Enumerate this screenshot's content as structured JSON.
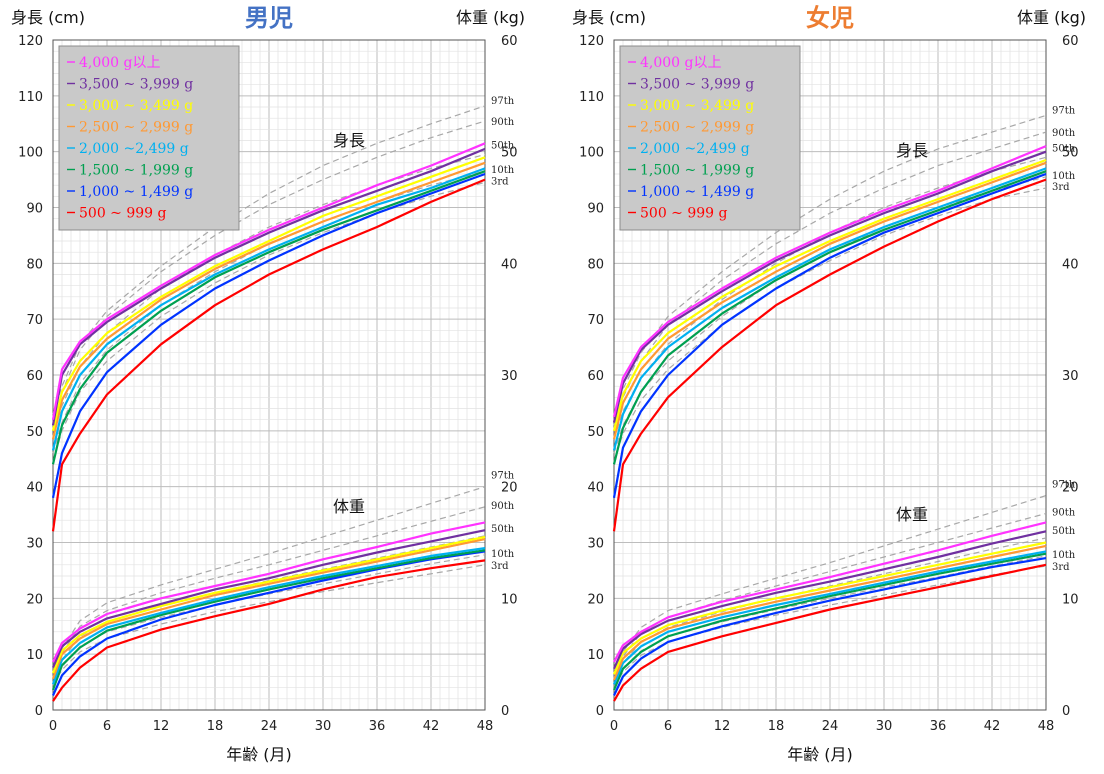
{
  "x_axis_title": "年齢 (月)",
  "left_axis_title": "身長 (cm)",
  "right_axis_title": "体重 (kg)",
  "height_label": "身長",
  "weight_label": "体重",
  "x_ticks": [
    0,
    6,
    12,
    18,
    24,
    30,
    36,
    42,
    48
  ],
  "left_ticks": [
    0,
    10,
    20,
    30,
    40,
    50,
    60,
    70,
    80,
    90,
    100,
    110,
    120
  ],
  "right_ticks": [
    0,
    10,
    20,
    30,
    40,
    50,
    60
  ],
  "legend": [
    {
      "label": "4,000 g以上",
      "color": "#ff33ff"
    },
    {
      "label": "3,500 ~ 3,999 g",
      "color": "#7030a0"
    },
    {
      "label": "3,000 ~ 3,499 g",
      "color": "#ffff00"
    },
    {
      "label": "2,500 ~ 2,999 g",
      "color": "#ff9933"
    },
    {
      "label": "2,000 ~2,499 g",
      "color": "#00b0f0"
    },
    {
      "label": "1,500 ~ 1,999 g",
      "color": "#00a050"
    },
    {
      "label": "1,000 ~ 1,499 g",
      "color": "#0033ff"
    },
    {
      "label": "500 ~ 999 g",
      "color": "#ff0000"
    }
  ],
  "chart_data": [
    {
      "type": "line",
      "title": "男児",
      "title_color": "#4472c4",
      "xlabel": "年齢 (月)",
      "ylabel_left": "身長 (cm)",
      "ylabel_right": "体重 (kg)",
      "xlim": [
        0,
        48
      ],
      "ylim_left": [
        0,
        120
      ],
      "ylim_right": [
        0,
        60
      ],
      "grid": true,
      "legend_position": "top-left",
      "x": [
        0,
        1,
        3,
        6,
        12,
        18,
        24,
        30,
        36,
        42,
        48
      ],
      "height_percentiles": [
        {
          "name": "97th",
          "values": [
            53,
            58,
            65.5,
            71.5,
            79.5,
            86.5,
            92.5,
            97.5,
            101.5,
            105,
            108.2
          ]
        },
        {
          "name": "90th",
          "values": [
            51.5,
            57,
            64.5,
            70.5,
            78.5,
            85,
            90.5,
            95,
            99,
            102.5,
            105.5
          ]
        },
        {
          "name": "50th",
          "values": [
            49,
            54.5,
            61.5,
            67.5,
            75.5,
            81.5,
            86.5,
            90.5,
            94,
            97,
            99.5
          ]
        },
        {
          "name": "10th",
          "values": [
            46,
            51.5,
            58.5,
            64.5,
            72.5,
            78.5,
            83.5,
            87.5,
            91,
            94,
            96.5
          ]
        },
        {
          "name": "3rd",
          "values": [
            44.5,
            50,
            57,
            62.5,
            70.5,
            76.5,
            81.5,
            85.5,
            89,
            92,
            94.5
          ]
        }
      ],
      "weight_percentiles": [
        {
          "name": "97th",
          "values": [
            3.8,
            5.5,
            8,
            9.6,
            11.2,
            12.6,
            14,
            15.5,
            17,
            18.5,
            20
          ]
        },
        {
          "name": "90th",
          "values": [
            3.4,
            5.1,
            7.5,
            8.9,
            10.5,
            11.8,
            13,
            14.3,
            15.6,
            16.9,
            18.2
          ]
        },
        {
          "name": "50th",
          "values": [
            3,
            4.5,
            6.6,
            7.9,
            9.3,
            10.5,
            11.6,
            12.6,
            13.6,
            14.6,
            15.6
          ]
        },
        {
          "name": "10th",
          "values": [
            2.5,
            3.9,
            5.7,
            7,
            8.3,
            9.4,
            10.4,
            11.3,
            12.2,
            13.1,
            13.9
          ]
        },
        {
          "name": "3rd",
          "values": [
            2.2,
            3.6,
            5.2,
            6.4,
            7.7,
            8.8,
            9.7,
            10.6,
            11.4,
            12.2,
            13
          ]
        }
      ],
      "height_series": [
        {
          "name": "4,000 g以上",
          "values": [
            52,
            61,
            66,
            70,
            76,
            81.5,
            86,
            90,
            94,
            97.5,
            101.5
          ]
        },
        {
          "name": "3,500 ~ 3,999 g",
          "values": [
            51,
            60,
            65.5,
            69.5,
            75.5,
            81,
            85.5,
            89.5,
            93,
            96.5,
            100.5
          ]
        },
        {
          "name": "3,000 ~ 3,499 g",
          "values": [
            50,
            57,
            62.5,
            67.5,
            74,
            79.5,
            84,
            88.5,
            92,
            95.5,
            99
          ]
        },
        {
          "name": "2,500 ~ 2,999 g",
          "values": [
            48.5,
            55.5,
            61.5,
            66.5,
            73.5,
            79,
            83.5,
            87.5,
            91,
            94.5,
            98
          ]
        },
        {
          "name": "2,000 ~2,499 g",
          "values": [
            46.5,
            53.5,
            60,
            65.5,
            72.5,
            78,
            82.5,
            86.5,
            90.5,
            93.5,
            97
          ]
        },
        {
          "name": "1,500 ~ 1,999 g",
          "values": [
            44,
            51,
            57.5,
            64,
            71.5,
            77.5,
            82,
            86,
            89.5,
            93,
            96.5
          ]
        },
        {
          "name": "1,000 ~ 1,499 g",
          "values": [
            38,
            46,
            53.5,
            60.5,
            69,
            75.5,
            80.5,
            85,
            89,
            92.5,
            96
          ]
        },
        {
          "name": "500 ~ 999 g",
          "values": [
            32,
            44,
            49.5,
            56.5,
            65.5,
            72.5,
            78,
            82.5,
            86.5,
            91,
            95
          ]
        }
      ],
      "weight_series": [
        {
          "name": "4,000 g以上",
          "values": [
            4.3,
            6,
            7.3,
            8.6,
            10,
            11.1,
            12.2,
            13.5,
            14.6,
            15.8,
            16.8
          ]
        },
        {
          "name": "3,500 ~ 3,999 g",
          "values": [
            3.8,
            5.7,
            7,
            8.2,
            9.5,
            10.8,
            11.8,
            13,
            14.1,
            15.1,
            16.1
          ]
        },
        {
          "name": "3,000 ~ 3,499 g",
          "values": [
            3.3,
            5.3,
            6.7,
            7.9,
            9.3,
            10.5,
            11.5,
            12.5,
            13.5,
            14.5,
            15.5
          ]
        },
        {
          "name": "2,500 ~ 2,999 g",
          "values": [
            2.8,
            5,
            6.4,
            7.7,
            9,
            10.3,
            11.3,
            12.3,
            13.3,
            14.3,
            15.3
          ]
        },
        {
          "name": "2,000 ~2,499 g",
          "values": [
            2.3,
            4.5,
            6,
            7.4,
            8.7,
            9.9,
            11,
            12,
            12.9,
            13.8,
            14.5
          ]
        },
        {
          "name": "1,500 ~ 1,999 g",
          "values": [
            1.8,
            4,
            5.6,
            7.1,
            8.5,
            9.7,
            10.8,
            11.8,
            12.7,
            13.6,
            14.3
          ]
        },
        {
          "name": "1,000 ~ 1,499 g",
          "values": [
            1.3,
            3.1,
            4.8,
            6.4,
            8.1,
            9.4,
            10.5,
            11.6,
            12.6,
            13.5,
            14.2
          ]
        },
        {
          "name": "500 ~ 999 g",
          "values": [
            0.8,
            2,
            3.8,
            5.6,
            7.2,
            8.4,
            9.5,
            10.8,
            11.9,
            12.7,
            13.4
          ]
        }
      ]
    },
    {
      "type": "line",
      "title": "女児",
      "title_color": "#ed7d31",
      "xlabel": "年齢 (月)",
      "ylabel_left": "身長 (cm)",
      "ylabel_right": "体重 (kg)",
      "xlim": [
        0,
        48
      ],
      "ylim_left": [
        0,
        120
      ],
      "ylim_right": [
        0,
        60
      ],
      "grid": true,
      "legend_position": "top-left",
      "x": [
        0,
        1,
        3,
        6,
        12,
        18,
        24,
        30,
        36,
        42,
        48
      ],
      "height_percentiles": [
        {
          "name": "97th",
          "values": [
            52.5,
            57.5,
            64,
            70.5,
            78.5,
            85.5,
            91.5,
            96.5,
            100.5,
            103.5,
            106.5
          ]
        },
        {
          "name": "90th",
          "values": [
            51,
            56,
            62.5,
            69,
            77,
            83.5,
            89,
            93.5,
            97.5,
            100.5,
            103.5
          ]
        },
        {
          "name": "50th",
          "values": [
            48.5,
            53.5,
            59.5,
            65.5,
            73.5,
            80,
            85.5,
            90,
            93.5,
            96.5,
            99
          ]
        },
        {
          "name": "10th",
          "values": [
            46,
            51,
            57,
            62.5,
            70.5,
            77,
            82,
            86.5,
            90,
            93,
            95.5
          ]
        },
        {
          "name": "3rd",
          "values": [
            44.5,
            49.5,
            55.5,
            61,
            69,
            75.5,
            80.5,
            85,
            88.5,
            91.5,
            93.5
          ]
        }
      ],
      "weight_percentiles": [
        {
          "name": "97th",
          "values": [
            3.7,
            5.2,
            7.4,
            8.9,
            10.4,
            11.8,
            13.2,
            14.7,
            16.2,
            17.7,
            19.2
          ]
        },
        {
          "name": "90th",
          "values": [
            3.3,
            4.8,
            6.9,
            8.3,
            9.8,
            11.1,
            12.4,
            13.7,
            15,
            16.3,
            17.6
          ]
        },
        {
          "name": "50th",
          "values": [
            2.9,
            4.2,
            6.1,
            7.4,
            8.8,
            10,
            11.1,
            12.2,
            13.3,
            14.4,
            15.4
          ]
        },
        {
          "name": "10th",
          "values": [
            2.4,
            3.7,
            5.3,
            6.6,
            7.9,
            9,
            10,
            11,
            11.9,
            12.9,
            13.8
          ]
        },
        {
          "name": "3rd",
          "values": [
            2.1,
            3.4,
            4.9,
            6.1,
            7.4,
            8.5,
            9.4,
            10.3,
            11.2,
            12.1,
            12.9
          ]
        }
      ],
      "height_series": [
        {
          "name": "4,000 g以上",
          "values": [
            52.5,
            59.5,
            65,
            69.5,
            75.5,
            81,
            85.5,
            89.5,
            93,
            97,
            101
          ]
        },
        {
          "name": "3,500 ~ 3,999 g",
          "values": [
            51.5,
            58.5,
            64.5,
            69,
            75,
            80.5,
            85,
            89,
            92.5,
            96.5,
            100
          ]
        },
        {
          "name": "3,000 ~ 3,499 g",
          "values": [
            50,
            56.5,
            62.5,
            67.5,
            74,
            79.5,
            84,
            88,
            91.5,
            95,
            98.5
          ]
        },
        {
          "name": "2,500 ~ 2,999 g",
          "values": [
            48.5,
            55,
            61,
            66.5,
            73,
            78.5,
            83.5,
            87.5,
            91,
            94.5,
            98
          ]
        },
        {
          "name": "2,000 ~2,499 g",
          "values": [
            46.5,
            53,
            59.5,
            65,
            72,
            77.5,
            82.5,
            86.5,
            90,
            93.5,
            97
          ]
        },
        {
          "name": "1,500 ~ 1,999 g",
          "values": [
            44,
            50.5,
            57,
            63.5,
            71,
            77,
            82,
            86,
            89.5,
            93,
            96.5
          ]
        },
        {
          "name": "1,000 ~ 1,499 g",
          "values": [
            38,
            47,
            53.5,
            60,
            69,
            75.5,
            81,
            85.5,
            89,
            92.5,
            96
          ]
        },
        {
          "name": "500 ~ 999 g",
          "values": [
            32,
            44,
            49.5,
            56,
            65,
            72.5,
            78,
            83,
            87.5,
            91.5,
            95
          ]
        }
      ],
      "weight_series": [
        {
          "name": "4,000 g以上",
          "values": [
            4.3,
            5.8,
            7,
            8.3,
            9.7,
            10.8,
            11.9,
            13.1,
            14.3,
            15.6,
            16.8
          ]
        },
        {
          "name": "3,500 ~ 3,999 g",
          "values": [
            3.7,
            5.5,
            6.8,
            8,
            9.3,
            10.5,
            11.5,
            12.6,
            13.7,
            14.9,
            16
          ]
        },
        {
          "name": "3,000 ~ 3,499 g",
          "values": [
            3.2,
            5.1,
            6.4,
            7.6,
            8.9,
            10,
            11,
            12,
            13,
            14,
            15
          ]
        },
        {
          "name": "2,500 ~ 2,999 g",
          "values": [
            2.7,
            4.6,
            6.1,
            7.3,
            8.6,
            9.7,
            10.7,
            11.7,
            12.7,
            13.7,
            14.7
          ]
        },
        {
          "name": "2,000 ~2,499 g",
          "values": [
            2.3,
            4.2,
            5.7,
            7,
            8.3,
            9.4,
            10.4,
            11.4,
            12.4,
            13.3,
            14.2
          ]
        },
        {
          "name": "1,500 ~ 1,999 g",
          "values": [
            1.8,
            3.7,
            5.2,
            6.6,
            8,
            9.1,
            10.2,
            11.2,
            12.2,
            13.1,
            14
          ]
        },
        {
          "name": "1,000 ~ 1,499 g",
          "values": [
            1.3,
            3,
            4.6,
            6.1,
            7.5,
            8.7,
            9.8,
            10.8,
            11.8,
            12.8,
            13.6
          ]
        },
        {
          "name": "500 ~ 999 g",
          "values": [
            0.8,
            2.2,
            3.7,
            5.2,
            6.6,
            7.8,
            9,
            10,
            11,
            12,
            13
          ]
        }
      ]
    }
  ]
}
